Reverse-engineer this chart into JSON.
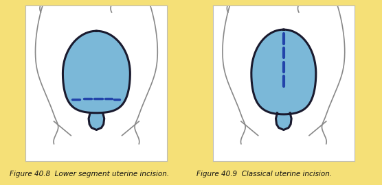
{
  "background_color": "#F5E077",
  "panel_bg": "#FFFFFF",
  "panel_edge": "#CCCCCC",
  "uterus_fill": "#7BB8D8",
  "uterus_edge": "#1a1a2e",
  "body_line_color": "#888888",
  "incision_color": "#2244AA",
  "caption1": "Figure 40.8  Lower segment uterine incision.",
  "caption2": "Figure 40.9  Classical uterine incision.",
  "caption_fontsize": 7.5,
  "caption_color": "#111111"
}
